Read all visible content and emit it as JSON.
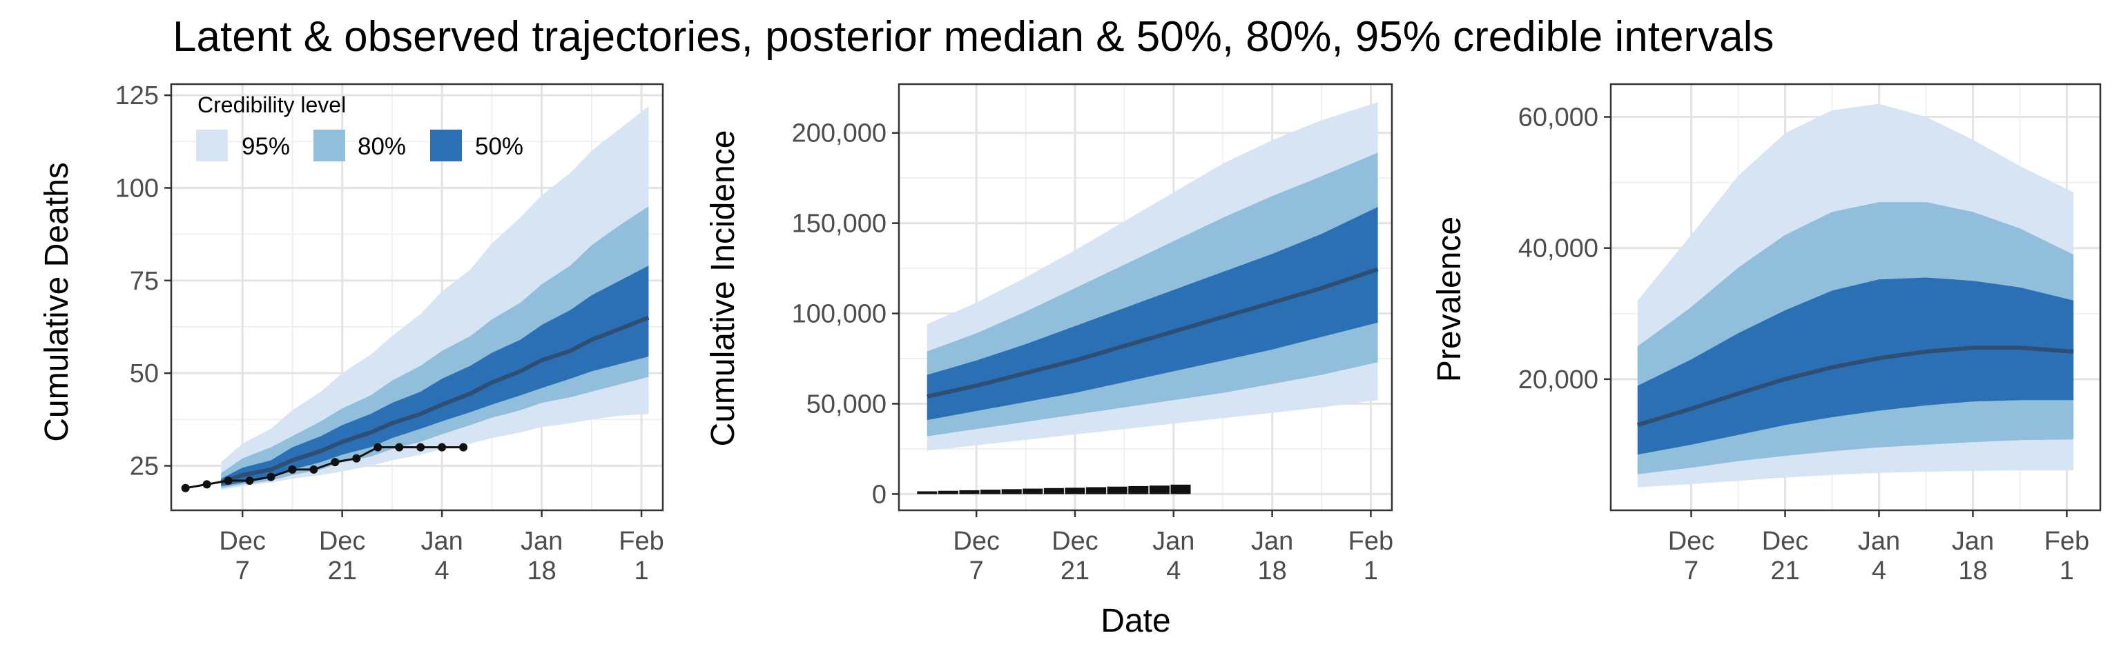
{
  "figure": {
    "title": "Latent & observed trajectories, posterior median & 50%, 80%, 95% credible intervals",
    "xlabel": "Date"
  },
  "legend": {
    "title": "Credibility level",
    "items": [
      {
        "label": "95%",
        "color": "#d6e4f4"
      },
      {
        "label": "80%",
        "color": "#90bedb"
      },
      {
        "label": "50%",
        "color": "#2b70b4"
      }
    ],
    "placement": "top-left inside first panel"
  },
  "colors": {
    "band95": "#d6e4f4",
    "band80": "#90bedb",
    "band50": "#2b70b4",
    "median": "#2e4f73",
    "observed": "#111111",
    "panel_bg": "#ffffff",
    "grid_major": "#e3e3e3",
    "grid_minor": "#f0f0f0",
    "axis_text": "#4d4d4d"
  },
  "chart_data": [
    {
      "type": "area",
      "panel": "deaths",
      "ylabel": "Cumulative Deaths",
      "grid": true,
      "x_ticks": [
        {
          "date": "2020-12-07",
          "label": [
            "Dec",
            "7"
          ]
        },
        {
          "date": "2020-12-21",
          "label": [
            "Dec",
            "21"
          ]
        },
        {
          "date": "2021-01-04",
          "label": [
            "Jan",
            "4"
          ]
        },
        {
          "date": "2021-01-18",
          "label": [
            "Jan",
            "18"
          ]
        },
        {
          "date": "2021-02-01",
          "label": [
            "Feb",
            "1"
          ]
        }
      ],
      "xlim": [
        "2020-11-27",
        "2021-02-04"
      ],
      "y_ticks": [
        {
          "value": 25,
          "label": "25"
        },
        {
          "value": 50,
          "label": "50"
        },
        {
          "value": 75,
          "label": "75"
        },
        {
          "value": 100,
          "label": "100"
        },
        {
          "value": 125,
          "label": "125"
        }
      ],
      "ylim": [
        13,
        128
      ],
      "dates": [
        "2020-12-04",
        "2020-12-07",
        "2020-12-11",
        "2020-12-14",
        "2020-12-18",
        "2020-12-21",
        "2020-12-25",
        "2020-12-28",
        "2021-01-01",
        "2021-01-04",
        "2021-01-08",
        "2021-01-11",
        "2021-01-15",
        "2021-01-18",
        "2021-01-22",
        "2021-01-25",
        "2021-01-29",
        "2021-02-02"
      ],
      "median": [
        20.5,
        22.5,
        24,
        26.5,
        29,
        31.5,
        34,
        36.5,
        39,
        41.5,
        44.5,
        47.5,
        50.5,
        53.5,
        56,
        59,
        62,
        65
      ],
      "lower50": [
        19.5,
        20.5,
        22,
        24,
        26,
        28,
        30,
        32.5,
        35,
        37,
        39.5,
        41.5,
        44,
        46,
        48.5,
        50.5,
        52.5,
        54.5
      ],
      "upper50": [
        21.5,
        24.5,
        26.5,
        30,
        33,
        36,
        39,
        42,
        45,
        48.5,
        52,
        55.5,
        59,
        63,
        67,
        71,
        75,
        79
      ],
      "lower80": [
        19,
        20,
        21,
        22.5,
        24,
        26,
        27.5,
        29.5,
        31.5,
        33.5,
        36,
        38,
        40,
        42,
        43.5,
        45,
        47,
        49
      ],
      "upper80": [
        23,
        27,
        30,
        33,
        37,
        40.5,
        44,
        48,
        52,
        56,
        60,
        64.5,
        69,
        74,
        79,
        84.5,
        90,
        95
      ],
      "lower95": [
        18.5,
        19.5,
        20.5,
        21.5,
        22.5,
        23.5,
        25,
        26.5,
        28,
        29.5,
        31,
        32.5,
        34,
        35.5,
        36.5,
        37.5,
        38.5,
        39
      ],
      "upper95": [
        26,
        31,
        35,
        40,
        45,
        50,
        55,
        60,
        66,
        72,
        78,
        85,
        92,
        98,
        104,
        110,
        116,
        122
      ],
      "observed": {
        "dates": [
          "2020-11-29",
          "2020-12-02",
          "2020-12-05",
          "2020-12-08",
          "2020-12-11",
          "2020-12-14",
          "2020-12-17",
          "2020-12-20",
          "2020-12-23",
          "2020-12-26",
          "2020-12-29",
          "2021-01-01",
          "2021-01-04",
          "2021-01-07"
        ],
        "values": [
          19,
          20,
          21,
          21,
          22,
          24,
          24,
          26,
          27,
          30,
          30,
          30,
          30,
          30
        ]
      }
    },
    {
      "type": "area",
      "panel": "incidence",
      "ylabel": "Cumulative Incidence",
      "grid": true,
      "x_ticks": [
        {
          "date": "2020-12-07",
          "label": [
            "Dec",
            "7"
          ]
        },
        {
          "date": "2020-12-21",
          "label": [
            "Dec",
            "21"
          ]
        },
        {
          "date": "2021-01-04",
          "label": [
            "Jan",
            "4"
          ]
        },
        {
          "date": "2021-01-18",
          "label": [
            "Jan",
            "18"
          ]
        },
        {
          "date": "2021-02-01",
          "label": [
            "Feb",
            "1"
          ]
        }
      ],
      "xlim": [
        "2020-11-26",
        "2021-02-04"
      ],
      "y_ticks": [
        {
          "value": 0,
          "label": "0"
        },
        {
          "value": 50000,
          "label": "50,000"
        },
        {
          "value": 100000,
          "label": "100,000"
        },
        {
          "value": 150000,
          "label": "150,000"
        },
        {
          "value": 200000,
          "label": "200,000"
        }
      ],
      "ylim": [
        -9000,
        227000
      ],
      "dates": [
        "2020-11-30",
        "2020-12-07",
        "2020-12-14",
        "2020-12-21",
        "2020-12-28",
        "2021-01-04",
        "2021-01-11",
        "2021-01-18",
        "2021-01-25",
        "2021-02-02"
      ],
      "median": [
        54000,
        60000,
        67000,
        74000,
        82000,
        90000,
        98000,
        106000,
        114000,
        124500
      ],
      "lower50": [
        41000,
        46000,
        51000,
        56000,
        62000,
        68000,
        74000,
        80000,
        87000,
        95000
      ],
      "upper50": [
        66000,
        74000,
        83000,
        93000,
        103000,
        113000,
        123000,
        133000,
        144000,
        159000
      ],
      "lower80": [
        32000,
        36000,
        40000,
        44000,
        48000,
        52000,
        56000,
        61000,
        66000,
        73000
      ],
      "upper80": [
        79000,
        89000,
        101000,
        114000,
        127000,
        140000,
        153000,
        165000,
        176000,
        189000
      ],
      "lower95": [
        24000,
        27000,
        30000,
        33000,
        36000,
        39000,
        42000,
        45000,
        48000,
        52000
      ],
      "upper95": [
        94000,
        106000,
        120000,
        135000,
        151000,
        167000,
        183000,
        196000,
        207000,
        217000
      ],
      "observed": {
        "dates": [
          "2020-11-30",
          "2020-12-03",
          "2020-12-06",
          "2020-12-09",
          "2020-12-12",
          "2020-12-15",
          "2020-12-18",
          "2020-12-21",
          "2020-12-24",
          "2020-12-27",
          "2020-12-30",
          "2021-01-02",
          "2021-01-05"
        ],
        "values": [
          1500,
          1800,
          2100,
          2400,
          2700,
          3000,
          3300,
          3500,
          3800,
          4100,
          4400,
          4700,
          5200
        ]
      }
    },
    {
      "type": "area",
      "panel": "prevalence",
      "ylabel": "Prevalence",
      "grid": true,
      "x_ticks": [
        {
          "date": "2020-12-07",
          "label": [
            "Dec",
            "7"
          ]
        },
        {
          "date": "2020-12-21",
          "label": [
            "Dec",
            "21"
          ]
        },
        {
          "date": "2021-01-04",
          "label": [
            "Jan",
            "4"
          ]
        },
        {
          "date": "2021-01-18",
          "label": [
            "Jan",
            "18"
          ]
        },
        {
          "date": "2021-02-01",
          "label": [
            "Feb",
            "1"
          ]
        }
      ],
      "xlim": [
        "2020-11-25",
        "2021-02-06"
      ],
      "y_ticks": [
        {
          "value": 20000,
          "label": "20,000"
        },
        {
          "value": 40000,
          "label": "40,000"
        },
        {
          "value": 60000,
          "label": "60,000"
        }
      ],
      "ylim": [
        0,
        65000
      ],
      "dates": [
        "2020-11-29",
        "2020-12-07",
        "2020-12-14",
        "2020-12-21",
        "2020-12-28",
        "2021-01-04",
        "2021-01-11",
        "2021-01-18",
        "2021-01-25",
        "2021-02-02"
      ],
      "median": [
        13000,
        15500,
        17800,
        20000,
        21800,
        23200,
        24200,
        24800,
        24800,
        24200
      ],
      "lower50": [
        8500,
        10000,
        11500,
        13000,
        14200,
        15200,
        16000,
        16600,
        16800,
        16800
      ],
      "upper50": [
        19000,
        23000,
        27000,
        30500,
        33500,
        35200,
        35500,
        35000,
        34000,
        32000
      ],
      "lower80": [
        5500,
        6500,
        7500,
        8300,
        9000,
        9600,
        10000,
        10400,
        10700,
        10800
      ],
      "upper80": [
        25000,
        31000,
        37000,
        42000,
        45500,
        47000,
        47000,
        45500,
        43000,
        39000
      ],
      "lower95": [
        3500,
        4000,
        4500,
        5000,
        5400,
        5700,
        5900,
        6000,
        6100,
        6100
      ],
      "upper95": [
        32000,
        42000,
        51000,
        57500,
        61000,
        62000,
        60000,
        56500,
        52500,
        48500
      ]
    }
  ]
}
